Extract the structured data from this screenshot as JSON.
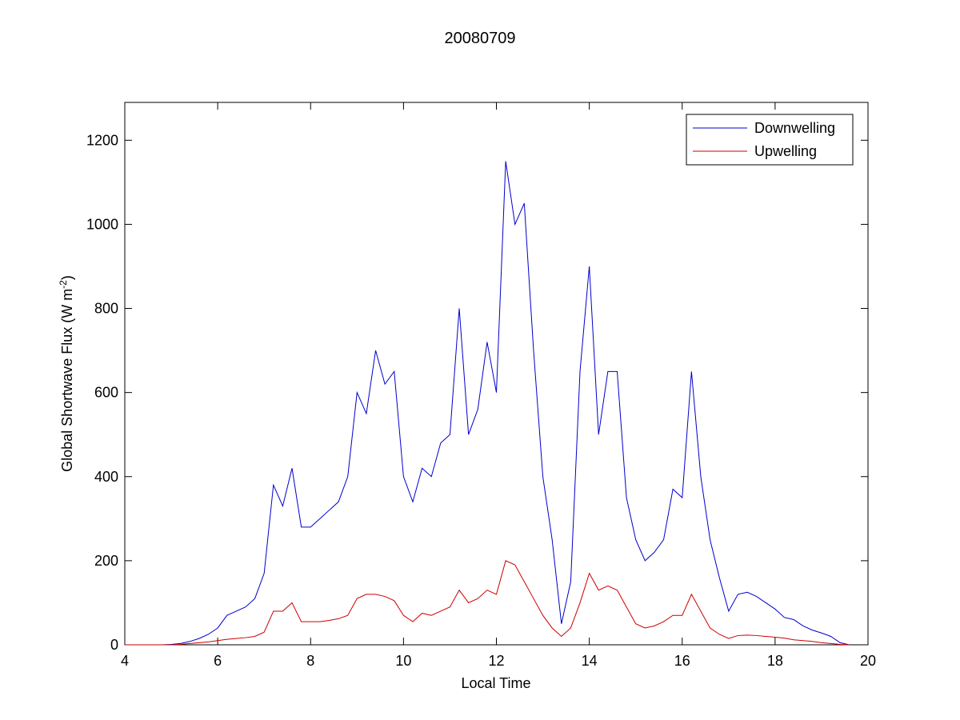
{
  "chart_data": {
    "type": "line",
    "title": "20080709",
    "xlabel": "Local Time",
    "ylabel": {
      "text": "Global Shortwave Flux (W m",
      "superscript": "-2",
      "suffix": ")"
    },
    "x": [
      4.0,
      4.2,
      4.4,
      4.6,
      4.8,
      5.0,
      5.2,
      5.4,
      5.6,
      5.8,
      6.0,
      6.2,
      6.4,
      6.6,
      6.8,
      7.0,
      7.2,
      7.4,
      7.6,
      7.8,
      8.0,
      8.2,
      8.4,
      8.6,
      8.8,
      9.0,
      9.2,
      9.4,
      9.6,
      9.8,
      10.0,
      10.2,
      10.4,
      10.6,
      10.8,
      11.0,
      11.2,
      11.4,
      11.6,
      11.8,
      12.0,
      12.2,
      12.4,
      12.6,
      12.8,
      13.0,
      13.2,
      13.4,
      13.6,
      13.8,
      14.0,
      14.2,
      14.4,
      14.6,
      14.8,
      15.0,
      15.2,
      15.4,
      15.6,
      15.8,
      16.0,
      16.2,
      16.4,
      16.6,
      16.8,
      17.0,
      17.2,
      17.4,
      17.6,
      17.8,
      18.0,
      18.2,
      18.4,
      18.6,
      18.8,
      19.0,
      19.2,
      19.4,
      19.6
    ],
    "series": [
      {
        "name": "Downwelling",
        "color": "#0000cc",
        "values": [
          0,
          0,
          0,
          0,
          0,
          1,
          3,
          8,
          15,
          25,
          40,
          70,
          80,
          90,
          110,
          170,
          380,
          330,
          420,
          280,
          280,
          300,
          320,
          340,
          400,
          600,
          550,
          700,
          620,
          650,
          400,
          340,
          420,
          400,
          480,
          500,
          800,
          500,
          560,
          720,
          600,
          1150,
          1000,
          1050,
          700,
          400,
          250,
          50,
          150,
          650,
          900,
          500,
          650,
          650,
          350,
          250,
          200,
          220,
          250,
          370,
          350,
          650,
          400,
          250,
          160,
          80,
          120,
          125,
          115,
          100,
          85,
          65,
          60,
          45,
          35,
          28,
          20,
          5,
          0
        ]
      },
      {
        "name": "Upwelling",
        "color": "#cc0000",
        "values": [
          0,
          0,
          0,
          0,
          0,
          0,
          1,
          3,
          5,
          7,
          10,
          13,
          15,
          17,
          20,
          30,
          80,
          80,
          100,
          55,
          55,
          55,
          58,
          62,
          70,
          110,
          120,
          120,
          115,
          105,
          70,
          55,
          75,
          70,
          80,
          90,
          130,
          100,
          110,
          130,
          120,
          200,
          190,
          150,
          110,
          70,
          40,
          20,
          40,
          100,
          170,
          130,
          140,
          130,
          90,
          50,
          40,
          45,
          55,
          70,
          70,
          120,
          80,
          40,
          25,
          15,
          22,
          23,
          22,
          20,
          18,
          16,
          12,
          10,
          8,
          5,
          3,
          1,
          0
        ]
      }
    ],
    "xlim": [
      4,
      20
    ],
    "xticks": [
      4,
      6,
      8,
      10,
      12,
      14,
      16,
      18,
      20
    ],
    "ylim": [
      0,
      1290
    ],
    "yticks": [
      0,
      200,
      400,
      600,
      800,
      1000,
      1200
    ],
    "legend": "northeast",
    "grid": false
  }
}
